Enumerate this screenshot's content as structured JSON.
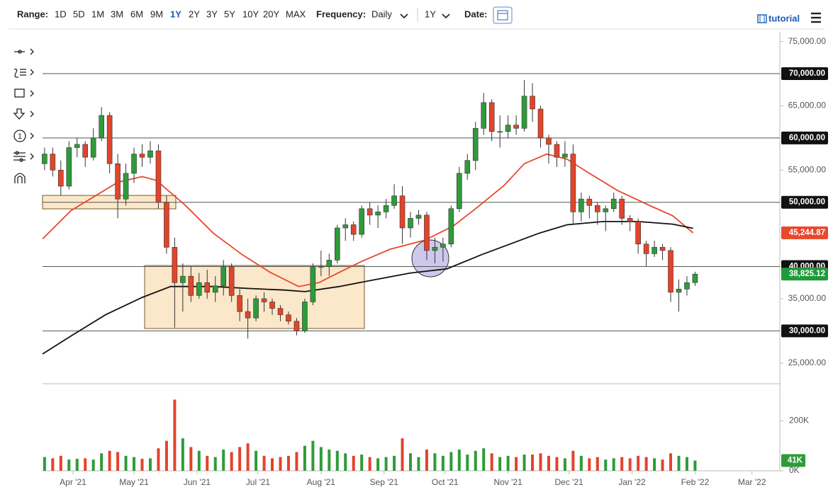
{
  "toolbar": {
    "range_label": "Range:",
    "ranges": [
      "1D",
      "5D",
      "1M",
      "3M",
      "6M",
      "9M",
      "1Y",
      "2Y",
      "3Y",
      "5Y",
      "10Y",
      "20Y",
      "MAX"
    ],
    "active_range": "1Y",
    "frequency_label": "Frequency:",
    "frequency": "Daily",
    "period": "1Y",
    "date_label": "Date:",
    "tutorial": "tutorial"
  },
  "left_toolbar": {
    "counter": "1"
  },
  "chart_data": [
    {
      "type": "candlestick",
      "x": [
        17,
        21,
        25,
        29,
        33,
        37,
        41,
        45,
        49,
        53,
        57,
        61,
        65,
        69,
        73,
        77,
        81,
        85,
        89,
        93,
        97,
        101,
        105,
        109,
        113,
        117,
        121,
        125,
        129,
        133,
        137,
        141,
        145,
        149,
        153,
        157,
        161,
        165,
        169,
        173,
        177,
        181,
        185,
        189,
        193,
        197,
        201,
        205,
        209,
        213,
        217,
        221,
        225,
        229,
        233,
        237,
        241,
        245,
        249,
        253,
        257,
        261,
        265,
        269,
        273,
        277,
        281,
        285,
        289,
        293,
        297,
        301,
        305,
        309,
        313,
        317,
        321,
        325,
        329,
        333,
        337
      ],
      "open": [
        56000,
        57500,
        55000,
        52500,
        58500,
        59000,
        57000,
        60000,
        63500,
        56000,
        50500,
        54500,
        57500,
        57000,
        58000,
        50000,
        43000,
        37500,
        38500,
        35500,
        37500,
        36000,
        37000,
        40000,
        35500,
        33000,
        32000,
        35000,
        34500,
        33500,
        32500,
        31500,
        30000,
        34500,
        40000,
        40000,
        41000,
        46000,
        46500,
        45000,
        49000,
        48000,
        48500,
        49500,
        51000,
        46000,
        47500,
        48000,
        42500,
        43000,
        43500,
        49000,
        54500,
        56500,
        61500,
        65500,
        61000,
        61000,
        62000,
        61500,
        66500,
        64500,
        60000,
        59000,
        57000,
        57500,
        48500,
        50500,
        49500,
        48500,
        49000,
        50500,
        47500,
        47000,
        43500,
        42000,
        43000,
        42500,
        36000,
        36500,
        37500
      ],
      "high": [
        58500,
        58500,
        56500,
        59500,
        60000,
        59500,
        61500,
        64800,
        64000,
        57500,
        56000,
        58500,
        59000,
        59500,
        59000,
        51000,
        44500,
        40500,
        40000,
        39000,
        39500,
        38500,
        41000,
        40500,
        36500,
        35000,
        35500,
        36000,
        35000,
        34000,
        33000,
        32000,
        35000,
        40500,
        42500,
        42000,
        46500,
        47500,
        47000,
        49500,
        50000,
        49500,
        50500,
        52800,
        52500,
        48500,
        48800,
        48500,
        44500,
        44500,
        49500,
        55500,
        57500,
        62500,
        67000,
        66000,
        63500,
        63500,
        63500,
        69000,
        68500,
        65000,
        60500,
        59500,
        59500,
        59000,
        51500,
        51000,
        50000,
        49500,
        51500,
        51000,
        48000,
        47500,
        44000,
        44000,
        43500,
        43000,
        38000,
        38500,
        39200
      ],
      "low": [
        55000,
        54000,
        51000,
        52000,
        57000,
        55500,
        56500,
        59500,
        54500,
        47500,
        49500,
        53000,
        55500,
        56000,
        49000,
        42000,
        30500,
        33000,
        34500,
        35000,
        35000,
        34500,
        35500,
        34500,
        31500,
        28800,
        31500,
        33000,
        32500,
        31500,
        31000,
        29300,
        29700,
        34000,
        38500,
        38500,
        40500,
        44000,
        44000,
        44500,
        46500,
        46000,
        47500,
        49000,
        43500,
        44500,
        46500,
        41000,
        40500,
        40800,
        43000,
        48500,
        53500,
        55000,
        60500,
        59500,
        58500,
        60000,
        60500,
        61000,
        62500,
        58500,
        56000,
        55500,
        55500,
        46500,
        47000,
        47500,
        46500,
        45500,
        48500,
        46500,
        45500,
        42000,
        40000,
        41500,
        41000,
        34500,
        33000,
        35500,
        37000
      ],
      "close": [
        57500,
        55000,
        52500,
        58500,
        59000,
        57000,
        60000,
        63500,
        56000,
        50500,
        54500,
        57500,
        57000,
        58000,
        50000,
        43000,
        37500,
        38500,
        35500,
        37500,
        36000,
        37000,
        40000,
        35500,
        33000,
        32000,
        35000,
        34500,
        33500,
        32500,
        31500,
        30000,
        34500,
        40000,
        40000,
        41000,
        46000,
        46500,
        45000,
        49000,
        48000,
        48500,
        49500,
        51000,
        46000,
        47500,
        48000,
        42500,
        43000,
        43500,
        49000,
        54500,
        56500,
        61500,
        65500,
        61000,
        61000,
        62000,
        61500,
        66500,
        64500,
        60000,
        59000,
        57000,
        57500,
        48500,
        50500,
        49500,
        48500,
        49000,
        50500,
        47500,
        47000,
        43500,
        42000,
        43000,
        42500,
        36000,
        36500,
        37500,
        38825
      ],
      "up_color": "#2e9b3a",
      "down_color": "#e2442b",
      "lines": [
        {
          "color": "#e8482c",
          "x": [
            16,
            30,
            53,
            65,
            72,
            86,
            100,
            114,
            128,
            142,
            152,
            162,
            173,
            187,
            204,
            218,
            229,
            243,
            253,
            264,
            274,
            285,
            299,
            316,
            326,
            336
          ],
          "values": [
            44300,
            48700,
            53100,
            54000,
            53400,
            49600,
            45200,
            41900,
            39100,
            36900,
            37500,
            39100,
            40800,
            42700,
            44100,
            46300,
            49000,
            52600,
            56000,
            57500,
            56700,
            54500,
            51800,
            49300,
            47900,
            45245
          ]
        },
        {
          "color": "#111111",
          "x": [
            16,
            30,
            47,
            65,
            79,
            100,
            117,
            135,
            145,
            162,
            180,
            197,
            215,
            232,
            246,
            260,
            274,
            292,
            309,
            326,
            336
          ],
          "values": [
            26400,
            29200,
            32500,
            35200,
            36900,
            36900,
            36600,
            36350,
            36100,
            36900,
            38000,
            39000,
            39650,
            41850,
            43500,
            45150,
            46500,
            47000,
            47000,
            46600,
            45950
          ]
        }
      ],
      "levels": [
        {
          "value": 70000,
          "label": "70,000.00"
        },
        {
          "value": 60000,
          "label": "60,000.00"
        },
        {
          "value": 50000,
          "label": "50,000.00"
        },
        {
          "value": 40000,
          "label": "40,000.00"
        },
        {
          "value": 30000,
          "label": "30,000.00"
        }
      ],
      "price_labels": [
        {
          "value": 45244.87,
          "label": "45,244.87",
          "color": "#e8482c"
        },
        {
          "value": 38825.12,
          "label": "38,825.12",
          "color": "#1f9a3a"
        }
      ],
      "xlim": [
        16,
        378
      ],
      "ylim": [
        22000,
        76500
      ],
      "yticks": [
        {
          "value": 75000,
          "label": "75,000.00"
        },
        {
          "value": 65000,
          "label": "65,000.00"
        },
        {
          "value": 55000,
          "label": "55,000.00"
        },
        {
          "value": 35000,
          "label": "35,000.00"
        },
        {
          "value": 25000,
          "label": "25,000.00"
        }
      ],
      "xticks": [
        {
          "value": 31,
          "label": "Apr '21"
        },
        {
          "value": 61,
          "label": "May '21"
        },
        {
          "value": 92,
          "label": "Jun '21"
        },
        {
          "value": 122,
          "label": "Jul '21"
        },
        {
          "value": 153,
          "label": "Aug '21"
        },
        {
          "value": 184,
          "label": "Sep '21"
        },
        {
          "value": 214,
          "label": "Oct '21"
        },
        {
          "value": 245,
          "label": "Nov '21"
        },
        {
          "value": 275,
          "label": "Dec '21"
        },
        {
          "value": 306,
          "label": "Jan '22"
        },
        {
          "value": 337,
          "label": "Feb '22"
        },
        {
          "value": 365,
          "label": "Mar '22"
        }
      ]
    },
    {
      "type": "bar",
      "x": [
        17,
        21,
        25,
        29,
        33,
        37,
        41,
        45,
        49,
        53,
        57,
        61,
        65,
        69,
        73,
        77,
        81,
        85,
        89,
        93,
        97,
        101,
        105,
        109,
        113,
        117,
        121,
        125,
        129,
        133,
        137,
        141,
        145,
        149,
        153,
        157,
        161,
        165,
        169,
        173,
        177,
        181,
        185,
        189,
        193,
        197,
        201,
        205,
        209,
        213,
        217,
        221,
        225,
        229,
        233,
        237,
        241,
        245,
        249,
        253,
        257,
        261,
        265,
        269,
        273,
        277,
        281,
        285,
        289,
        293,
        297,
        301,
        305,
        309,
        313,
        317,
        321,
        325,
        329,
        333,
        337
      ],
      "values": [
        55000,
        50000,
        60000,
        45000,
        48000,
        50000,
        45000,
        70000,
        80000,
        75000,
        60000,
        55000,
        48000,
        50000,
        90000,
        120000,
        285000,
        130000,
        95000,
        80000,
        60000,
        55000,
        85000,
        75000,
        95000,
        110000,
        80000,
        60000,
        50000,
        55000,
        60000,
        75000,
        100000,
        120000,
        95000,
        85000,
        80000,
        70000,
        60000,
        65000,
        55000,
        50000,
        55000,
        60000,
        130000,
        70000,
        55000,
        85000,
        70000,
        60000,
        75000,
        85000,
        65000,
        80000,
        90000,
        70000,
        55000,
        60000,
        55000,
        65000,
        65000,
        70000,
        60000,
        55000,
        50000,
        80000,
        60000,
        50000,
        55000,
        45000,
        50000,
        55000,
        50000,
        60000,
        55000,
        50000,
        45000,
        70000,
        60000,
        55000,
        41000
      ],
      "last_label": "41K",
      "xlim": [
        16,
        378
      ],
      "ylim": [
        0,
        340000
      ],
      "yticks": [
        {
          "value": 200000,
          "label": "200K"
        },
        {
          "value": 0,
          "label": "0K"
        }
      ]
    }
  ]
}
